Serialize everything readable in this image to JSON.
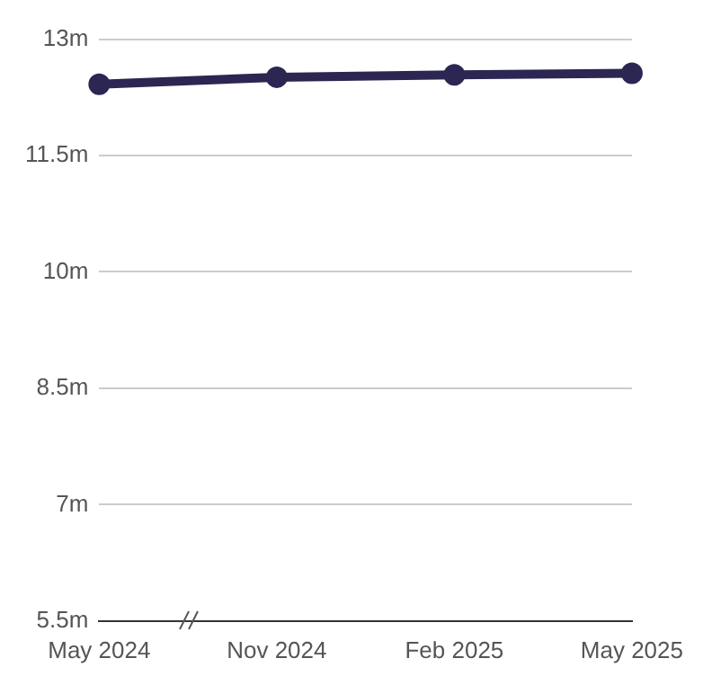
{
  "chart_data": {
    "type": "line",
    "categories": [
      "May 2024",
      "Nov 2024",
      "Feb 2025",
      "May 2025"
    ],
    "series": [
      {
        "color": "#2b2652",
        "values": [
          12.42,
          12.51,
          12.54,
          12.56
        ]
      }
    ],
    "ylim": [
      5.5,
      13
    ],
    "yticks": [
      {
        "value": 5.5,
        "label": "5.5m"
      },
      {
        "value": 7,
        "label": "7m"
      },
      {
        "value": 8.5,
        "label": "8.5m"
      },
      {
        "value": 10,
        "label": "10m"
      },
      {
        "value": 11.5,
        "label": "11.5m"
      },
      {
        "value": 13,
        "label": "13m"
      }
    ],
    "grid": "y",
    "legend": false,
    "marker": "circle",
    "line_style": "solid"
  }
}
